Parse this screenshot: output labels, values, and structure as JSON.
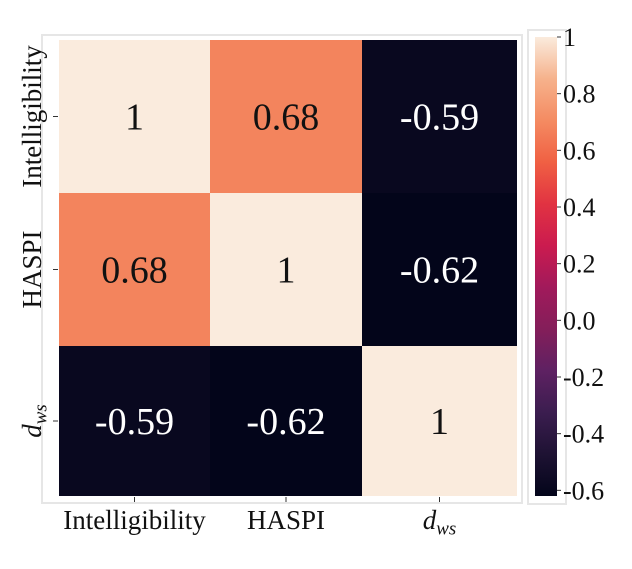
{
  "chart_data": {
    "type": "heatmap",
    "title": "",
    "row_labels": [
      {
        "base": "Intelligibility",
        "sub": ""
      },
      {
        "base": "HASPI",
        "sub": ""
      },
      {
        "base": "d",
        "sub": "ws"
      }
    ],
    "col_labels": [
      {
        "base": "Intelligibility",
        "sub": ""
      },
      {
        "base": "HASPI",
        "sub": ""
      },
      {
        "base": "d",
        "sub": "ws"
      }
    ],
    "values": [
      [
        1,
        0.68,
        -0.59
      ],
      [
        0.68,
        1,
        -0.62
      ],
      [
        -0.59,
        -0.62,
        1
      ]
    ],
    "annotations": [
      [
        "1",
        "0.68",
        "-0.59"
      ],
      [
        "0.68",
        "1",
        "-0.62"
      ],
      [
        "-0.59",
        "-0.62",
        "1"
      ]
    ],
    "colorbar": {
      "vmin": -0.62,
      "vmax": 1,
      "ticks": [
        1,
        0.8,
        0.6,
        0.4,
        0.2,
        0.0,
        -0.2,
        -0.4,
        -0.6
      ],
      "tick_labels": [
        "1",
        "0.8",
        "0.6",
        "0.4",
        "0.2",
        "0.0",
        "-0.2",
        "-0.4",
        "-0.6"
      ],
      "colormap": "rocket",
      "colors": [
        "#03051a",
        "#1e1233",
        "#3b1d4f",
        "#5e2162",
        "#841e5a",
        "#a11a5b",
        "#cb1b4f",
        "#e13342",
        "#f06043",
        "#f48b62",
        "#f6b28c",
        "#faebdd"
      ]
    }
  }
}
